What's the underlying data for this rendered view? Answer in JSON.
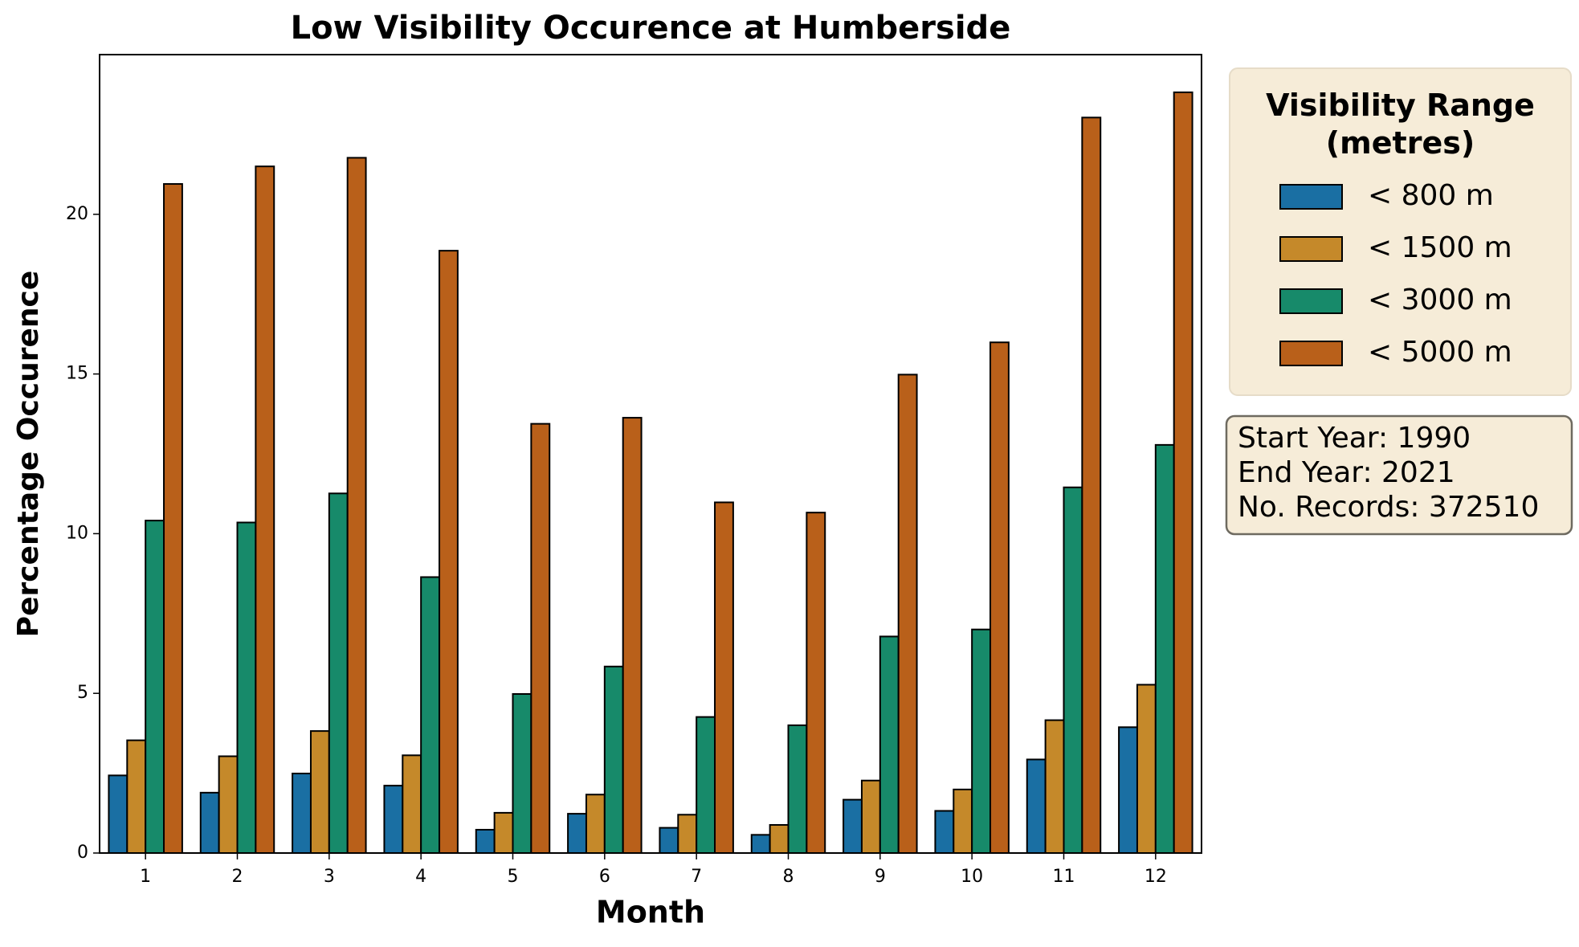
{
  "chart_data": {
    "type": "bar",
    "title": "Low Visibility Occurence at Humberside",
    "x_label": "Month",
    "y_label": "Percentage Occurence",
    "categories": [
      "1",
      "2",
      "3",
      "4",
      "5",
      "6",
      "7",
      "8",
      "9",
      "10",
      "11",
      "12"
    ],
    "series": [
      {
        "name": "< 800 m",
        "color": "#1a6fa3",
        "values": [
          2.43,
          1.89,
          2.49,
          2.11,
          0.73,
          1.23,
          0.79,
          0.57,
          1.67,
          1.32,
          2.93,
          3.94
        ]
      },
      {
        "name": "< 1500 m",
        "color": "#c5892a",
        "values": [
          3.53,
          3.03,
          3.82,
          3.06,
          1.26,
          1.83,
          1.2,
          0.88,
          2.27,
          1.99,
          4.16,
          5.27
        ]
      },
      {
        "name": "< 3000 m",
        "color": "#178a6a",
        "values": [
          10.41,
          10.35,
          11.26,
          8.64,
          4.98,
          5.84,
          4.26,
          4.0,
          6.78,
          7.0,
          11.45,
          12.78
        ]
      },
      {
        "name": "< 5000 m",
        "color": "#b9601a",
        "values": [
          20.95,
          21.5,
          21.77,
          18.86,
          13.44,
          13.63,
          10.98,
          10.66,
          14.98,
          15.99,
          23.03,
          23.82
        ]
      }
    ],
    "ylim": [
      0,
      25
    ],
    "yticks": [
      0,
      5,
      10,
      15,
      20
    ],
    "legend_title": "Visibility Range (metres)",
    "legend_position": "outside upper right",
    "annotations": [
      "Start Year: 1990",
      "End Year: 2021",
      "No. Records: 372510"
    ]
  }
}
